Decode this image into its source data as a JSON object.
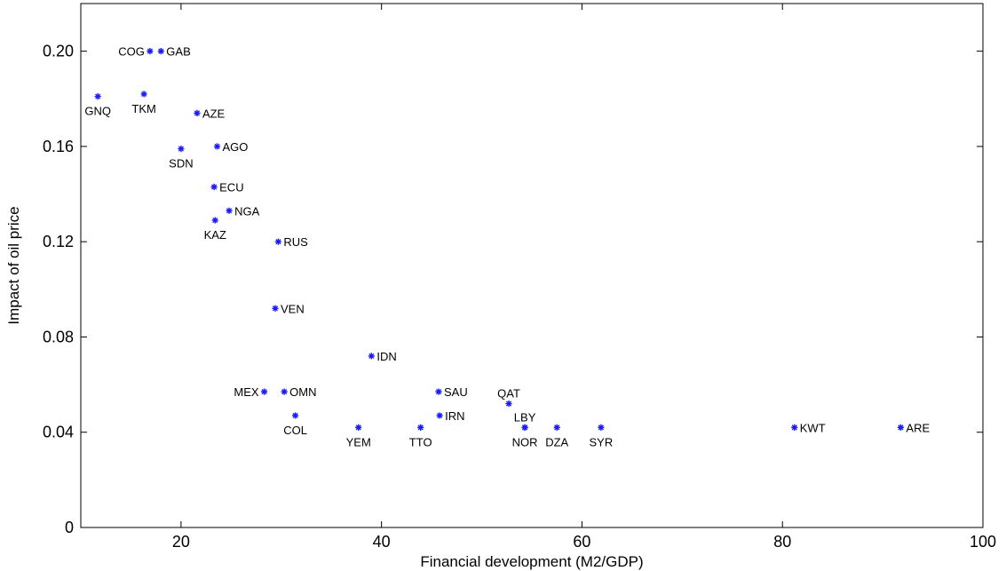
{
  "chart_data": {
    "type": "scatter",
    "title": "",
    "xlabel": "Financial development (M2/GDP)",
    "ylabel": "Impact of oil price",
    "xlim": [
      10,
      100
    ],
    "ylim": [
      0,
      0.22
    ],
    "x_ticks": [
      {
        "value": 20,
        "label": "20"
      },
      {
        "value": 40,
        "label": "40"
      },
      {
        "value": 60,
        "label": "60"
      },
      {
        "value": 80,
        "label": "80"
      },
      {
        "value": 100,
        "label": "100"
      }
    ],
    "y_ticks": [
      {
        "value": 0,
        "label": "0"
      },
      {
        "value": 0.04,
        "label": "0.04"
      },
      {
        "value": 0.08,
        "label": "0.08"
      },
      {
        "value": 0.12,
        "label": "0.12"
      },
      {
        "value": 0.16,
        "label": "0.16"
      },
      {
        "value": 0.2,
        "label": "0.20"
      }
    ],
    "grid": false,
    "legend": "none",
    "marker_color": "#1a1aff",
    "marker": "asterisk",
    "points": [
      {
        "label": "COG",
        "x": 16.9,
        "y": 0.2,
        "label_pos": "left"
      },
      {
        "label": "GAB",
        "x": 18.0,
        "y": 0.2,
        "label_pos": "right"
      },
      {
        "label": "GNQ",
        "x": 11.7,
        "y": 0.181,
        "label_pos": "below"
      },
      {
        "label": "TKM",
        "x": 16.3,
        "y": 0.182,
        "label_pos": "below"
      },
      {
        "label": "AZE",
        "x": 21.6,
        "y": 0.174,
        "label_pos": "right"
      },
      {
        "label": "SDN",
        "x": 20.0,
        "y": 0.159,
        "label_pos": "below"
      },
      {
        "label": "AGO",
        "x": 23.6,
        "y": 0.16,
        "label_pos": "right"
      },
      {
        "label": "ECU",
        "x": 23.3,
        "y": 0.143,
        "label_pos": "right"
      },
      {
        "label": "NGA",
        "x": 24.8,
        "y": 0.133,
        "label_pos": "right"
      },
      {
        "label": "KAZ",
        "x": 23.4,
        "y": 0.129,
        "label_pos": "below"
      },
      {
        "label": "RUS",
        "x": 29.7,
        "y": 0.12,
        "label_pos": "right"
      },
      {
        "label": "VEN",
        "x": 29.4,
        "y": 0.092,
        "label_pos": "right"
      },
      {
        "label": "IDN",
        "x": 39.0,
        "y": 0.072,
        "label_pos": "right"
      },
      {
        "label": "MEX",
        "x": 28.3,
        "y": 0.057,
        "label_pos": "left"
      },
      {
        "label": "OMN",
        "x": 30.3,
        "y": 0.057,
        "label_pos": "right"
      },
      {
        "label": "SAU",
        "x": 45.7,
        "y": 0.057,
        "label_pos": "right"
      },
      {
        "label": "QAT",
        "x": 52.7,
        "y": 0.052,
        "label_pos": "above"
      },
      {
        "label": "COL",
        "x": 31.4,
        "y": 0.047,
        "label_pos": "below"
      },
      {
        "label": "IRN",
        "x": 45.8,
        "y": 0.047,
        "label_pos": "right"
      },
      {
        "label": "LBY",
        "x": 54.3,
        "y": 0.042,
        "label_pos": "above"
      },
      {
        "label": "YEM",
        "x": 37.7,
        "y": 0.042,
        "label_pos": "below"
      },
      {
        "label": "TTO",
        "x": 43.9,
        "y": 0.042,
        "label_pos": "below"
      },
      {
        "label": "NOR",
        "x": 54.3,
        "y": 0.042,
        "label_pos": "below"
      },
      {
        "label": "DZA",
        "x": 57.5,
        "y": 0.042,
        "label_pos": "below"
      },
      {
        "label": "SYR",
        "x": 61.9,
        "y": 0.042,
        "label_pos": "below"
      },
      {
        "label": "KWT",
        "x": 81.2,
        "y": 0.042,
        "label_pos": "right"
      },
      {
        "label": "ARE",
        "x": 91.8,
        "y": 0.042,
        "label_pos": "right"
      }
    ]
  }
}
